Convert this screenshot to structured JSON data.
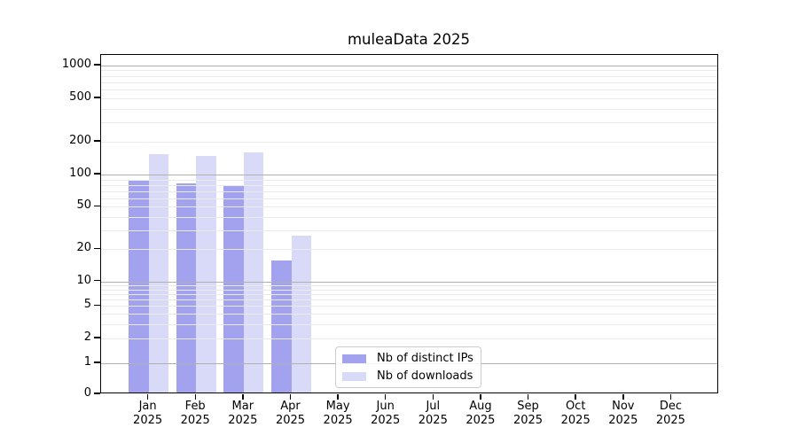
{
  "title": "muleaData 2025",
  "legend": {
    "items": [
      {
        "label": "Nb of distinct IPs",
        "color": "#a2a2ef"
      },
      {
        "label": "Nb of downloads",
        "color": "#d9d9f8"
      }
    ]
  },
  "chart_data": {
    "type": "bar",
    "title": "muleaData 2025",
    "categories": [
      "Jan 2025",
      "Feb 2025",
      "Mar 2025",
      "Apr 2025",
      "May 2025",
      "Jun 2025",
      "Jul 2025",
      "Aug 2025",
      "Sep 2025",
      "Oct 2025",
      "Nov 2025",
      "Dec 2025"
    ],
    "series": [
      {
        "name": "Nb of distinct IPs",
        "color": "#a2a2ef",
        "values": [
          84,
          80,
          75,
          15,
          0,
          0,
          0,
          0,
          0,
          0,
          0,
          0
        ]
      },
      {
        "name": "Nb of downloads",
        "color": "#d9d9f8",
        "values": [
          147,
          143,
          155,
          26,
          0,
          0,
          0,
          0,
          0,
          0,
          0,
          0
        ]
      }
    ],
    "xlabel": "",
    "ylabel": "",
    "yscale": "symlog",
    "ylim": [
      0,
      1250
    ],
    "yticks": [
      0,
      1,
      2,
      5,
      10,
      20,
      50,
      100,
      200,
      500,
      1000
    ],
    "grid": true,
    "grid_major_color": "#b0b0b0",
    "grid_minor_color": "#eaeaea",
    "legend_position": "inside lower-center"
  }
}
